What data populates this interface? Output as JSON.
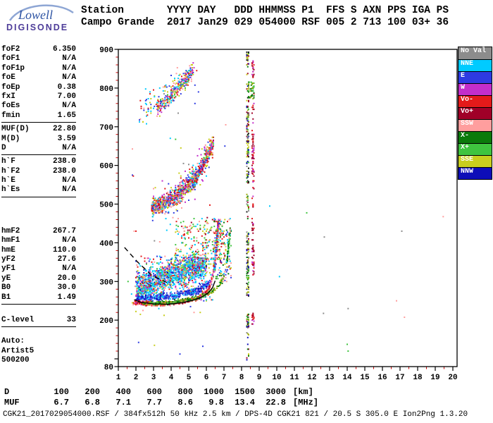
{
  "logo": {
    "brand": "Lowell",
    "product": "DIGISONDE",
    "brand_color": "#2F55A4",
    "product_color": "#4E3D99",
    "swoosh_color": "#8EA6D4"
  },
  "header": {
    "line1": "Station       YYYY DAY   DDD HHMMSS P1  FFS S AXN PPS IGA PS",
    "line2": "Campo Grande  2017 Jan29 029 054000 RSF 005 2 713 100 03+ 36"
  },
  "params": {
    "groups": [
      {
        "rows": [
          [
            "foF2",
            "6.350"
          ],
          [
            "foF1",
            "N/A"
          ],
          [
            "foF1p",
            "N/A"
          ],
          [
            "foE",
            "N/A"
          ],
          [
            "foEp",
            "0.38"
          ],
          [
            "fxI",
            "7.00"
          ],
          [
            "foEs",
            "N/A"
          ],
          [
            "fmin",
            "1.65"
          ]
        ],
        "separator": true,
        "gap_after": 3
      },
      {
        "rows": [
          [
            "MUF(D)",
            "22.80"
          ],
          [
            "M(D)",
            "3.59"
          ],
          [
            "D",
            "N/A"
          ]
        ],
        "separator": true,
        "gap_after": 3
      },
      {
        "rows": [
          [
            "h`F",
            "238.0"
          ],
          [
            "h`F2",
            "238.0"
          ],
          [
            "h`E",
            "N/A"
          ],
          [
            "h`Es",
            "N/A"
          ]
        ],
        "separator": true,
        "gap_after": 42
      },
      {
        "rows": [
          [
            "hmF2",
            "267.7"
          ],
          [
            "hmF1",
            "N/A"
          ],
          [
            "hmE",
            "110.0"
          ],
          [
            "yF2",
            "27.6"
          ],
          [
            "yF1",
            "N/A"
          ],
          [
            "yE",
            "20.0"
          ],
          [
            "B0",
            "30.0"
          ],
          [
            "B1",
            "1.49"
          ]
        ],
        "separator": true,
        "gap_after": 16
      },
      {
        "rows": [
          [
            "C-level",
            "33"
          ]
        ],
        "separator": true,
        "gap_after": 14
      },
      {
        "rows": [
          [
            "Auto:",
            ""
          ],
          [
            "Artist5",
            ""
          ],
          [
            "500200",
            ""
          ]
        ],
        "separator": false,
        "gap_after": 0
      }
    ]
  },
  "legend": {
    "items": [
      {
        "label": "No Val",
        "color": "#8C8C8C"
      },
      {
        "label": "NNE",
        "color": "#00CBFF"
      },
      {
        "label": "E",
        "color": "#2E3BE2"
      },
      {
        "label": "W",
        "color": "#C32ECB"
      },
      {
        "label": "Vo-",
        "color": "#E31A1A"
      },
      {
        "label": "Vo+",
        "color": "#A00028"
      },
      {
        "label": "SSW",
        "color": "#FF9E9E"
      },
      {
        "label": "X-",
        "color": "#0B7A0B"
      },
      {
        "label": "X+",
        "color": "#3FC43F"
      },
      {
        "label": "SSE",
        "color": "#C9CE1E"
      },
      {
        "label": "NNW",
        "color": "#0D0DB8"
      }
    ]
  },
  "range_table": {
    "rows": [
      {
        "label": "D",
        "values": [
          "100",
          "200",
          "400",
          "600",
          "800",
          "1000",
          "1500",
          "3000"
        ],
        "unit": "[km]"
      },
      {
        "label": "MUF",
        "values": [
          "6.7",
          "6.8",
          "7.1",
          "7.7",
          "8.6",
          "9.8",
          "13.4",
          "22.8"
        ],
        "unit": "[MHz]"
      }
    ]
  },
  "status_line": "CGK21_2017029054000.RSF / 384fx512h 50 kHz 2.5 km / DPS-4D CGK21 821 / 20.5 S 305.0 E Ion2Png 1.3.20",
  "chart_data": {
    "type": "scatter",
    "seed": 1337,
    "x_axis": {
      "min": 1,
      "max": 20,
      "unit": "MHz",
      "major_ticks": [
        1,
        2,
        3,
        4,
        5,
        6,
        7,
        8,
        9,
        10,
        11,
        12,
        13,
        14,
        15,
        16,
        17,
        18,
        19,
        20
      ],
      "minor_step": 0.5
    },
    "y_axis": {
      "min": 80,
      "max": 900,
      "unit": "km",
      "major_labels": [
        900,
        800,
        700,
        600,
        500,
        400,
        300,
        200,
        80
      ],
      "minor_step": 20
    },
    "grid_f_mhz": 0.05,
    "grid_h_km": 2.5,
    "palette": {
      "cyan": "#00CBFF",
      "blue": "#2E3BE2",
      "navy": "#0D0DB8",
      "magenta": "#C32ECB",
      "red": "#E31A1A",
      "crimson": "#A00028",
      "pink": "#FF9E9E",
      "dkgreen": "#0B7A0B",
      "green": "#3FC43F",
      "olive": "#9FAE10",
      "yellow": "#C9CE1E",
      "gray": "#8C8C8C",
      "black": "#1A1A1A"
    },
    "clusters": [
      {
        "name": "spread-f-region",
        "type": "path",
        "count": 1400,
        "spread": 40,
        "min_h": 248,
        "path": [
          [
            2.0,
            282
          ],
          [
            2.8,
            298
          ],
          [
            3.6,
            312
          ],
          [
            4.4,
            324
          ],
          [
            5.2,
            334
          ],
          [
            6.0,
            344
          ]
        ],
        "colors": [
          "cyan",
          "cyan",
          "cyan",
          "cyan",
          "cyan",
          "blue",
          "pink",
          "red",
          "magenta",
          "green",
          "yellow",
          "navy"
        ]
      },
      {
        "name": "spread-f-upper-sparse",
        "type": "box",
        "count": 240,
        "x": [
          4.2,
          6.9
        ],
        "y": [
          340,
          465
        ],
        "colors": [
          "pink",
          "red",
          "cyan",
          "green",
          "yellow",
          "crimson"
        ]
      },
      {
        "name": "spread-f-mid-sparse",
        "type": "box",
        "count": 280,
        "x": [
          1.9,
          6.3
        ],
        "y": [
          250,
          372
        ],
        "colors": [
          "cyan",
          "cyan",
          "blue",
          "pink",
          "yellow",
          "magenta",
          "green",
          "red"
        ]
      },
      {
        "name": "f-trace-blue-band",
        "type": "path",
        "count": 430,
        "spread": 10,
        "path": [
          [
            2.0,
            256
          ],
          [
            3.0,
            258
          ],
          [
            4.0,
            262
          ],
          [
            4.8,
            268
          ],
          [
            5.5,
            277
          ],
          [
            6.0,
            289
          ],
          [
            6.3,
            302
          ]
        ],
        "colors": [
          "blue",
          "navy",
          "blue",
          "cyan",
          "blue"
        ]
      },
      {
        "name": "f-trace-o-mode",
        "type": "path",
        "count": 720,
        "spread": 6,
        "path": [
          [
            1.85,
            246
          ],
          [
            2.5,
            243
          ],
          [
            3.5,
            242
          ],
          [
            4.5,
            247
          ],
          [
            5.2,
            253
          ],
          [
            5.7,
            261
          ],
          [
            6.0,
            272
          ],
          [
            6.2,
            288
          ],
          [
            6.35,
            312
          ],
          [
            6.5,
            348
          ],
          [
            6.6,
            398
          ],
          [
            6.68,
            448
          ]
        ],
        "colors": [
          "red",
          "red",
          "pink",
          "crimson",
          "red",
          "pink",
          "magenta",
          "red"
        ]
      },
      {
        "name": "o-mode-cusp",
        "type": "path",
        "count": 130,
        "spread": 9,
        "path": [
          [
            6.45,
            330
          ],
          [
            6.55,
            382
          ],
          [
            6.65,
            438
          ],
          [
            6.72,
            458
          ]
        ],
        "colors": [
          "red",
          "pink",
          "blue",
          "cyan",
          "magenta"
        ]
      },
      {
        "name": "f-trace-x-mode",
        "type": "path",
        "count": 270,
        "spread": 6,
        "path": [
          [
            2.4,
            244
          ],
          [
            3.3,
            243
          ],
          [
            4.3,
            248
          ],
          [
            5.1,
            254
          ],
          [
            5.9,
            264
          ],
          [
            6.5,
            280
          ],
          [
            6.9,
            301
          ],
          [
            7.1,
            332
          ],
          [
            7.25,
            378
          ],
          [
            7.33,
            420
          ]
        ],
        "colors": [
          "dkgreen",
          "green",
          "olive"
        ]
      },
      {
        "name": "x-mode-cusp",
        "type": "path",
        "count": 70,
        "spread": 8,
        "path": [
          [
            7.15,
            345
          ],
          [
            7.28,
            398
          ],
          [
            7.38,
            442
          ]
        ],
        "colors": [
          "green",
          "dkgreen",
          "cyan"
        ]
      },
      {
        "name": "cusp-halo",
        "type": "box",
        "count": 150,
        "x": [
          6.4,
          7.4
        ],
        "y": [
          300,
          462
        ],
        "colors": [
          "cyan",
          "green",
          "red",
          "pink",
          "dkgreen",
          "blue",
          "yellow"
        ]
      },
      {
        "name": "second-hop-trace",
        "type": "path",
        "count": 1000,
        "spread": 24,
        "path": [
          [
            2.9,
            490
          ],
          [
            3.3,
            497
          ],
          [
            3.8,
            507
          ],
          [
            4.3,
            521
          ],
          [
            4.8,
            540
          ],
          [
            5.3,
            565
          ],
          [
            5.8,
            598
          ],
          [
            6.15,
            634
          ],
          [
            6.4,
            662
          ]
        ],
        "colors": [
          "red",
          "pink",
          "red",
          "pink",
          "cyan",
          "blue",
          "magenta",
          "green",
          "yellow",
          "crimson"
        ]
      },
      {
        "name": "second-hop-halo",
        "type": "path",
        "count": 230,
        "spread": 55,
        "path": [
          [
            2.9,
            490
          ],
          [
            3.8,
            507
          ],
          [
            4.8,
            540
          ],
          [
            5.8,
            598
          ],
          [
            6.4,
            662
          ]
        ],
        "colors": [
          "pink",
          "cyan",
          "red",
          "blue",
          "yellow",
          "magenta"
        ]
      },
      {
        "name": "third-hop-trace",
        "type": "path",
        "count": 280,
        "spread": 20,
        "path": [
          [
            3.2,
            745
          ],
          [
            3.8,
            770
          ],
          [
            4.4,
            800
          ],
          [
            5.0,
            830
          ],
          [
            5.3,
            848
          ]
        ],
        "colors": [
          "pink",
          "cyan",
          "red",
          "blue",
          "yellow",
          "magenta",
          "green"
        ]
      },
      {
        "name": "third-hop-halo",
        "type": "path",
        "count": 120,
        "spread": 42,
        "path": [
          [
            2.2,
            740
          ],
          [
            3.4,
            775
          ],
          [
            4.6,
            815
          ],
          [
            5.2,
            845
          ]
        ],
        "colors": [
          "cyan",
          "pink",
          "blue",
          "red",
          "yellow"
        ]
      },
      {
        "name": "rfi-column-8-35",
        "type": "column",
        "x": 8.35,
        "dx": 0.055,
        "segments": [
          [
            854,
            893,
            24
          ],
          [
            760,
            840,
            14
          ],
          [
            554,
            754,
            110
          ],
          [
            460,
            540,
            18
          ],
          [
            263,
            427,
            90
          ],
          [
            180,
            217,
            35
          ],
          [
            96,
            168,
            12
          ]
        ],
        "colors": [
          "dkgreen",
          "olive",
          "green",
          "yellow",
          "crimson",
          "gray",
          "navy",
          "black"
        ]
      },
      {
        "name": "rfi-column-8-65",
        "type": "column",
        "x": 8.65,
        "dx": 0.045,
        "segments": [
          [
            827,
            872,
            20
          ],
          [
            700,
            790,
            10
          ],
          [
            572,
            690,
            55
          ],
          [
            480,
            560,
            14
          ],
          [
            317,
            463,
            45
          ],
          [
            190,
            217,
            18
          ]
        ],
        "colors": [
          "crimson",
          "crimson",
          "red",
          "magenta"
        ]
      },
      {
        "name": "green-patch",
        "type": "box",
        "count": 45,
        "x": [
          8.35,
          8.7
        ],
        "y": [
          772,
          818
        ],
        "colors": [
          "green",
          "dkgreen",
          "olive"
        ]
      },
      {
        "name": "noise-left",
        "type": "box",
        "count": 55,
        "x": [
          1.3,
          7.7
        ],
        "y": [
          95,
          890
        ],
        "colors": [
          "gray",
          "cyan",
          "pink",
          "green",
          "yellow",
          "blue",
          "red"
        ]
      },
      {
        "name": "noise-right",
        "type": "box",
        "count": 10,
        "x": [
          8.6,
          19.5
        ],
        "y": [
          90,
          515
        ],
        "colors": [
          "green",
          "gray",
          "pink",
          "cyan"
        ]
      },
      {
        "name": "isolated-echoes",
        "type": "dots",
        "points": [
          [
            13.98,
            138,
            "green"
          ],
          [
            14.05,
            120,
            "green"
          ]
        ]
      }
    ],
    "overlay_lines": [
      {
        "name": "artist-dashed-line",
        "style": "dashed",
        "points": [
          [
            1.35,
            388
          ],
          [
            2.1,
            350
          ],
          [
            2.9,
            316
          ],
          [
            3.9,
            294
          ]
        ]
      },
      {
        "name": "artist-profile-line",
        "style": "solid",
        "points": [
          [
            1.9,
            253
          ],
          [
            2.3,
            246
          ],
          [
            3.0,
            242
          ],
          [
            3.8,
            241
          ],
          [
            4.6,
            245
          ],
          [
            5.2,
            251
          ],
          [
            5.7,
            259
          ],
          [
            6.1,
            270
          ],
          [
            6.35,
            284
          ],
          [
            6.5,
            302
          ]
        ]
      }
    ]
  }
}
